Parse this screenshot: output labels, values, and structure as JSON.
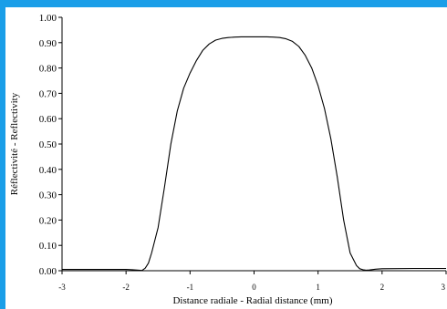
{
  "chart_data": {
    "type": "line",
    "title": "",
    "xlabel": "Distance radiale - Radial distance (mm)",
    "ylabel": "Réflectivité - Reflectivity",
    "xlim": [
      -3,
      3
    ],
    "ylim": [
      0,
      1
    ],
    "x_ticks": [
      "-3",
      "-2",
      "-1",
      "0",
      "1",
      "2",
      "3"
    ],
    "y_ticks": [
      "0.00",
      "0.10",
      "0.20",
      "0.30",
      "0.40",
      "0.50",
      "0.60",
      "0.70",
      "0.80",
      "0.90",
      "1.00"
    ],
    "grid": false,
    "legend": "none",
    "colors": {
      "frame": "#1a9ee8",
      "background": "#ffffff",
      "line": "#000000"
    },
    "series": [
      {
        "x": [
          -3.0,
          -2.5,
          -2.0,
          -1.9,
          -1.8,
          -1.75,
          -1.7,
          -1.65,
          -1.6,
          -1.5,
          -1.4,
          -1.3,
          -1.2,
          -1.1,
          -1.0,
          -0.9,
          -0.8,
          -0.7,
          -0.6,
          -0.5,
          -0.4,
          -0.3,
          -0.2,
          0.0,
          0.2,
          0.3,
          0.4,
          0.5,
          0.6,
          0.7,
          0.8,
          0.9,
          1.0,
          1.1,
          1.2,
          1.3,
          1.4,
          1.5,
          1.6,
          1.65,
          1.7,
          1.75,
          1.8,
          1.9,
          2.0,
          2.5,
          3.0
        ],
        "y": [
          0.005,
          0.005,
          0.005,
          0.004,
          0.002,
          0.001,
          0.01,
          0.03,
          0.07,
          0.17,
          0.33,
          0.5,
          0.63,
          0.72,
          0.78,
          0.83,
          0.87,
          0.895,
          0.91,
          0.917,
          0.92,
          0.922,
          0.923,
          0.923,
          0.923,
          0.922,
          0.92,
          0.915,
          0.905,
          0.885,
          0.85,
          0.8,
          0.73,
          0.64,
          0.52,
          0.37,
          0.2,
          0.07,
          0.02,
          0.008,
          0.004,
          0.002,
          0.003,
          0.006,
          0.008,
          0.009,
          0.009
        ]
      }
    ]
  }
}
